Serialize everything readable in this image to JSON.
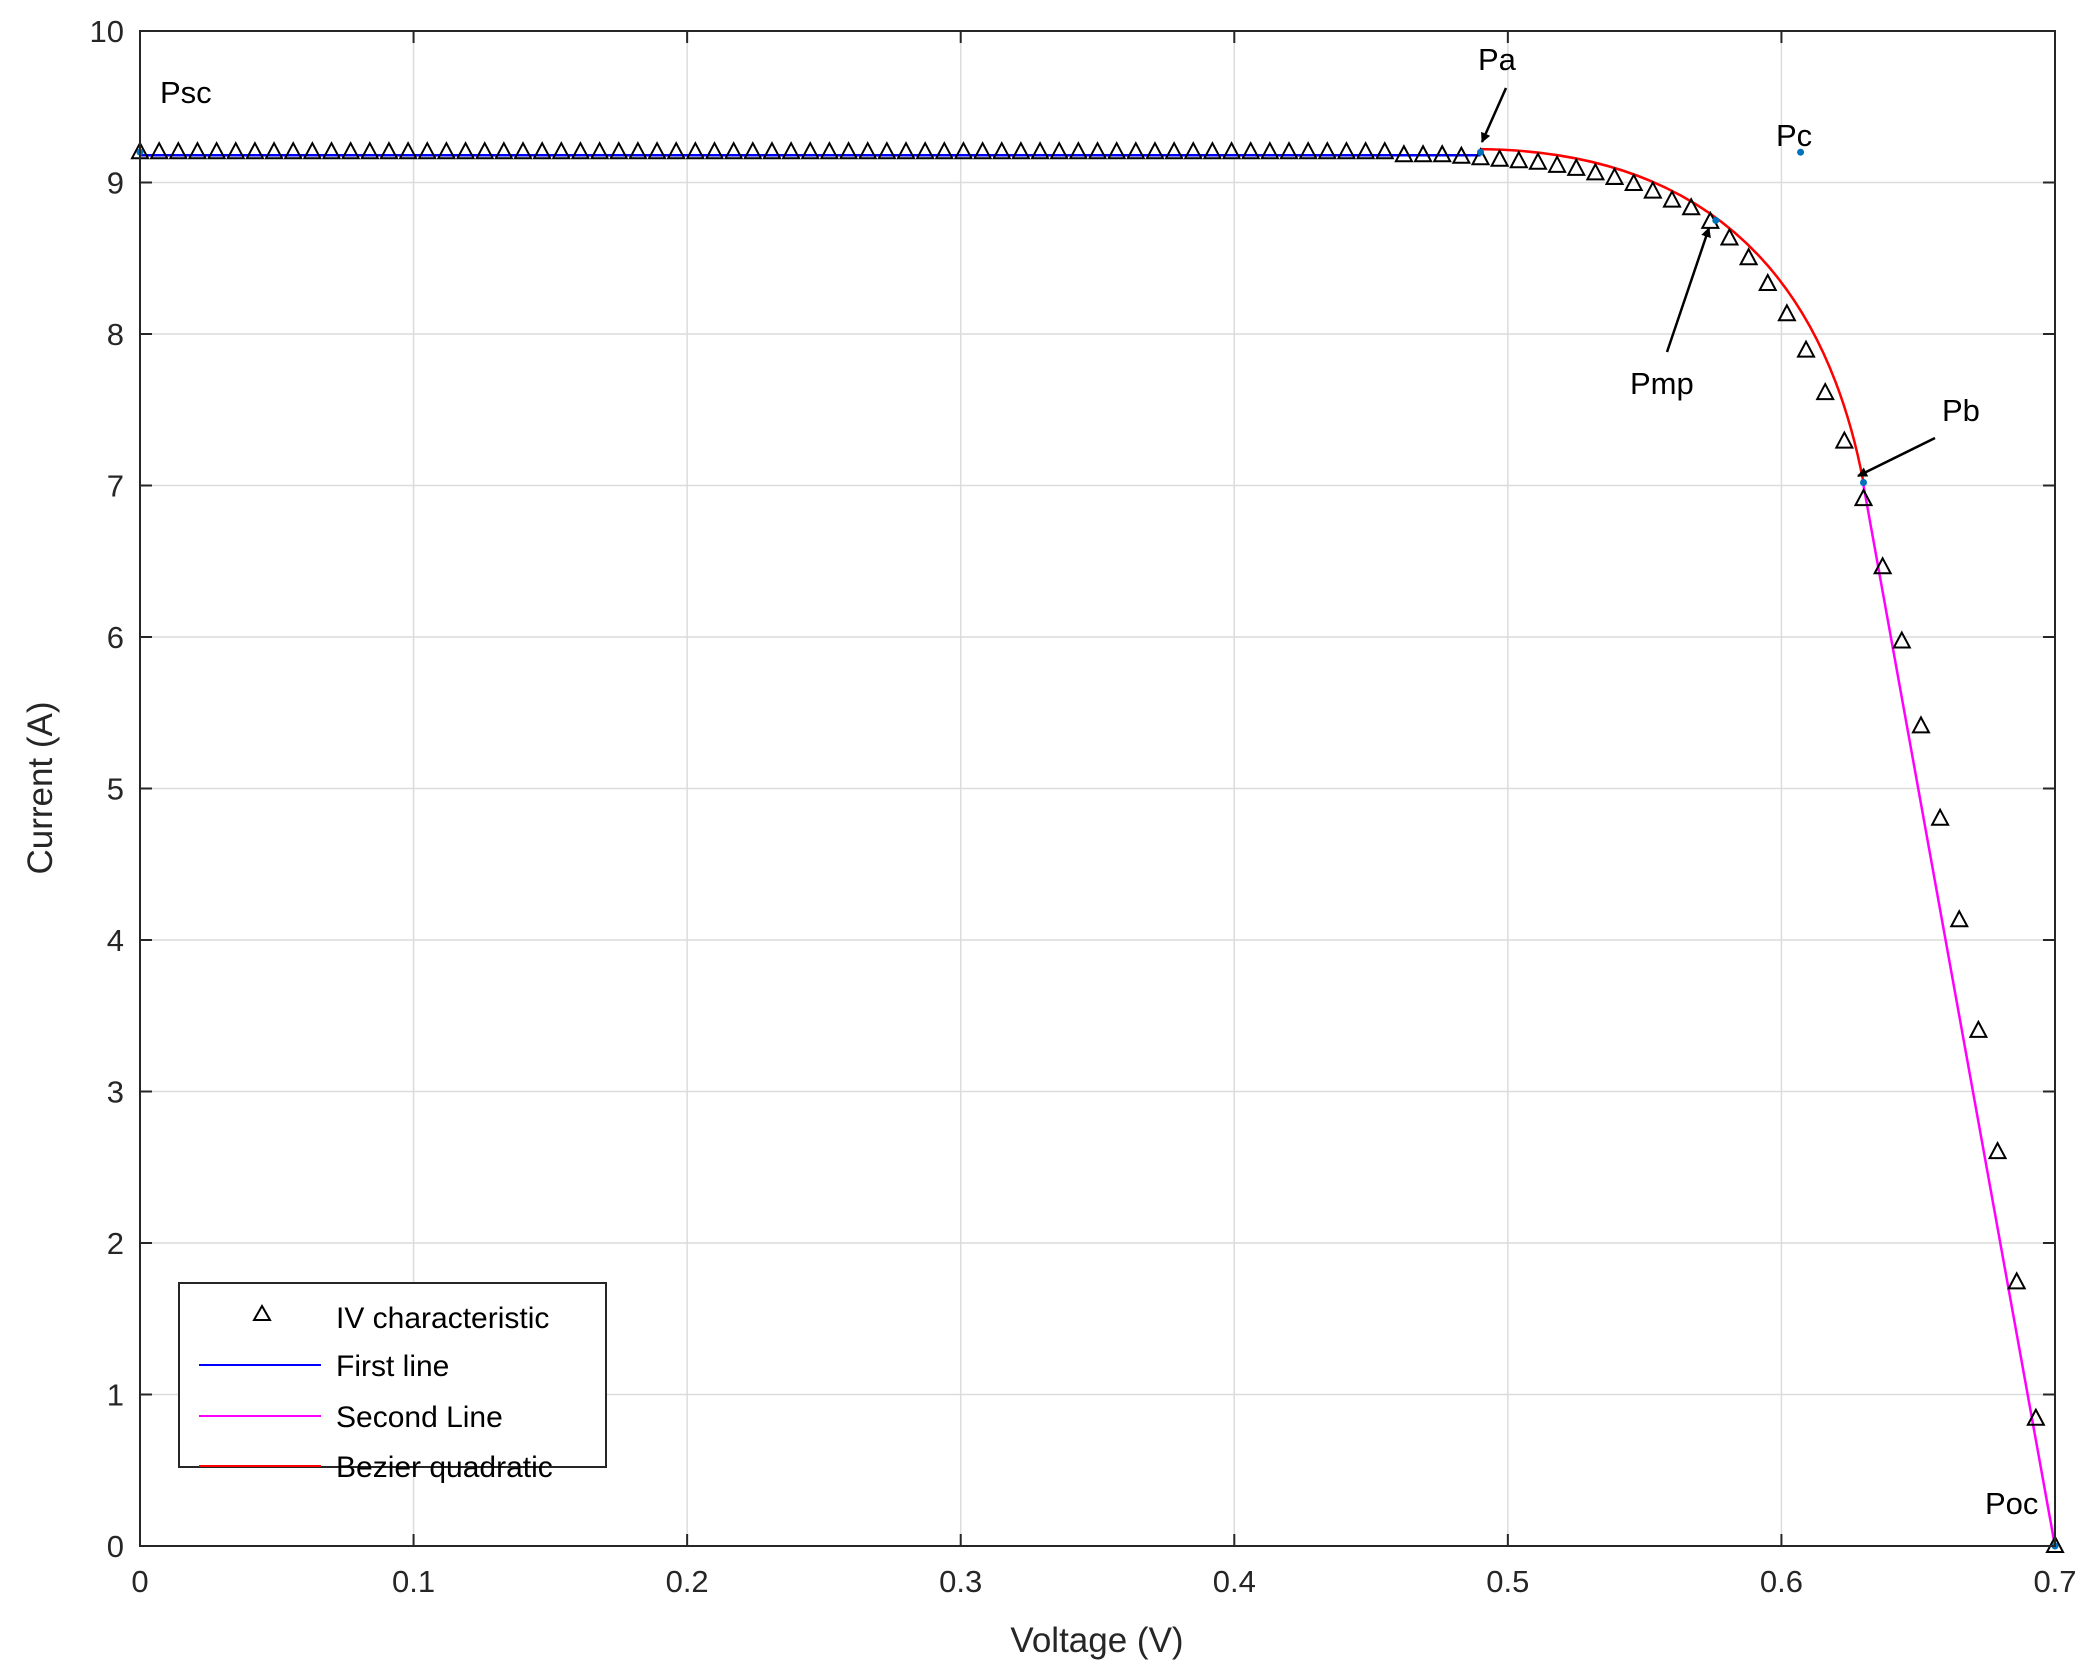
{
  "chart_data": {
    "type": "line",
    "xlabel": "Voltage (V)",
    "ylabel": "Current (A)",
    "xlim": [
      0,
      0.7
    ],
    "ylim": [
      0,
      10
    ],
    "grid": true,
    "x_ticks": [
      "0",
      "0.1",
      "0.2",
      "0.3",
      "0.4",
      "0.5",
      "0.6",
      "0.7"
    ],
    "y_ticks": [
      "0",
      "1",
      "2",
      "3",
      "4",
      "5",
      "6",
      "7",
      "8",
      "9",
      "10"
    ],
    "legend_position": "bottom-left",
    "series": [
      {
        "name": "IV characteristic",
        "style": "markers",
        "marker": "triangle",
        "color": "#000000",
        "x": [
          0,
          0.007,
          0.014,
          0.021,
          0.028,
          0.035,
          0.042,
          0.049,
          0.056,
          0.063,
          0.07,
          0.077,
          0.084,
          0.091,
          0.098,
          0.105,
          0.112,
          0.119,
          0.126,
          0.133,
          0.14,
          0.147,
          0.154,
          0.161,
          0.168,
          0.175,
          0.182,
          0.189,
          0.196,
          0.203,
          0.21,
          0.217,
          0.224,
          0.231,
          0.238,
          0.245,
          0.252,
          0.259,
          0.266,
          0.273,
          0.28,
          0.287,
          0.294,
          0.301,
          0.308,
          0.315,
          0.322,
          0.329,
          0.336,
          0.343,
          0.35,
          0.357,
          0.364,
          0.371,
          0.378,
          0.385,
          0.392,
          0.399,
          0.406,
          0.413,
          0.42,
          0.427,
          0.434,
          0.441,
          0.448,
          0.455,
          0.462,
          0.469,
          0.476,
          0.483,
          0.49,
          0.497,
          0.504,
          0.511,
          0.518,
          0.525,
          0.532,
          0.539,
          0.546,
          0.553,
          0.56,
          0.567,
          0.574,
          0.581,
          0.588,
          0.595,
          0.602,
          0.609,
          0.616,
          0.623,
          0.63,
          0.637,
          0.644,
          0.651,
          0.658,
          0.665,
          0.672,
          0.679,
          0.686,
          0.693,
          0.7
        ],
        "y": [
          9.2,
          9.2,
          9.2,
          9.2,
          9.2,
          9.2,
          9.2,
          9.2,
          9.2,
          9.2,
          9.2,
          9.2,
          9.2,
          9.2,
          9.2,
          9.2,
          9.2,
          9.2,
          9.2,
          9.2,
          9.2,
          9.2,
          9.2,
          9.2,
          9.2,
          9.2,
          9.2,
          9.2,
          9.2,
          9.2,
          9.2,
          9.2,
          9.2,
          9.2,
          9.2,
          9.2,
          9.2,
          9.2,
          9.2,
          9.2,
          9.2,
          9.2,
          9.2,
          9.2,
          9.2,
          9.2,
          9.2,
          9.2,
          9.2,
          9.2,
          9.2,
          9.2,
          9.2,
          9.2,
          9.2,
          9.2,
          9.2,
          9.2,
          9.2,
          9.2,
          9.2,
          9.2,
          9.2,
          9.2,
          9.2,
          9.2,
          9.18,
          9.18,
          9.18,
          9.17,
          9.16,
          9.15,
          9.14,
          9.13,
          9.11,
          9.09,
          9.06,
          9.03,
          8.99,
          8.94,
          8.88,
          8.83,
          8.74,
          8.63,
          8.5,
          8.33,
          8.13,
          7.89,
          7.61,
          7.29,
          6.91,
          6.46,
          5.97,
          5.41,
          4.8,
          4.13,
          3.4,
          2.6,
          1.74,
          0.84,
          0
        ]
      },
      {
        "name": "First line",
        "style": "line",
        "color": "#0000ff",
        "x": [
          0,
          0.49
        ],
        "y": [
          9.18,
          9.18
        ]
      },
      {
        "name": "Second Line",
        "style": "line",
        "color": "#ff00ff",
        "x": [
          0.63,
          0.7
        ],
        "y": [
          7.0,
          0.0
        ]
      },
      {
        "name": "Bezier quadratic",
        "style": "bezier",
        "color": "#ff0000",
        "x": [
          0.49,
          0.607,
          0.63
        ],
        "y": [
          9.22,
          9.2,
          7.02
        ]
      }
    ],
    "points": [
      {
        "label": "Psc",
        "x": 0,
        "y": 9.2
      },
      {
        "label": "Pa",
        "x": 0.49,
        "y": 9.2
      },
      {
        "label": "Pmp",
        "x": 0.576,
        "y": 8.75
      },
      {
        "label": "Pc",
        "x": 0.607,
        "y": 9.2
      },
      {
        "label": "Pb",
        "x": 0.63,
        "y": 7.02
      },
      {
        "label": "Poc",
        "x": 0.7,
        "y": 0
      }
    ]
  },
  "colors": {
    "axis": "#262626",
    "grid": "#dcdcdc",
    "points": "#0072bd"
  }
}
